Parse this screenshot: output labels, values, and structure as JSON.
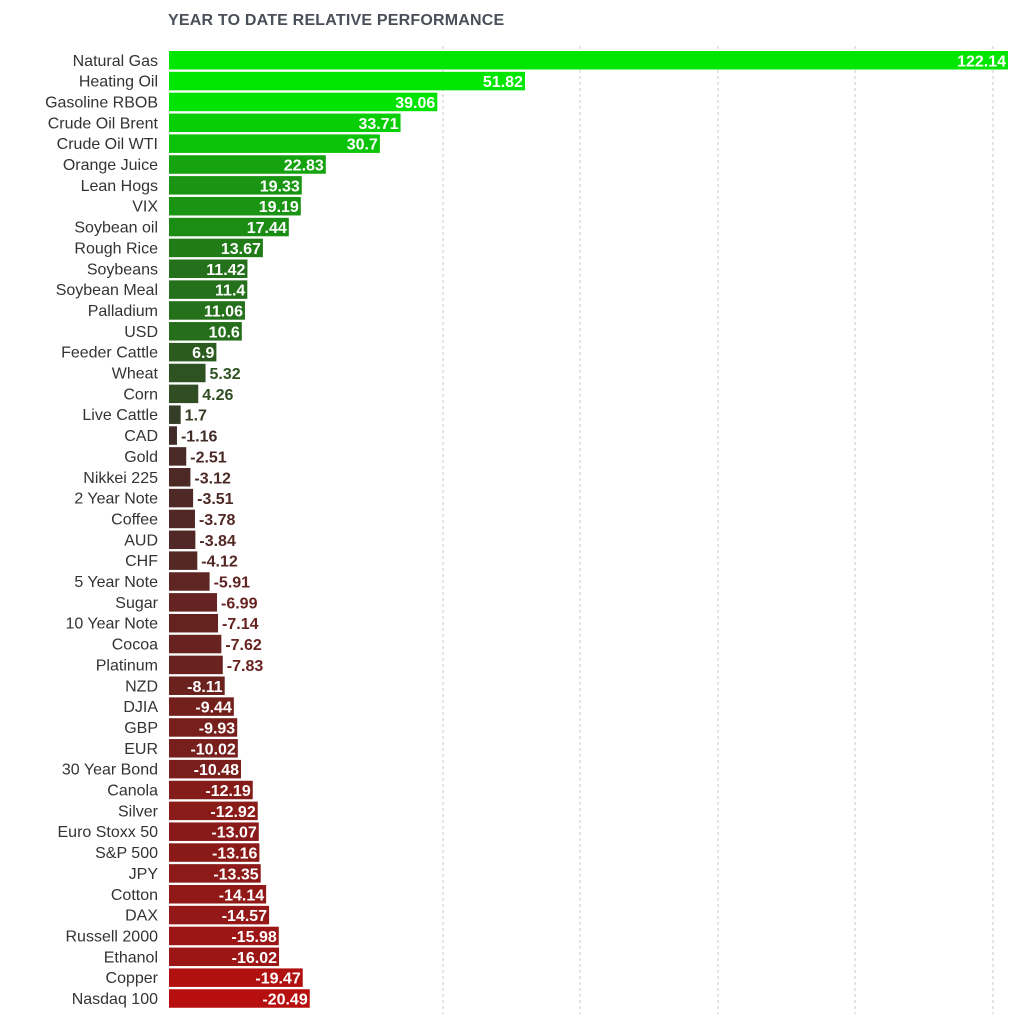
{
  "title": "YEAR TO DATE RELATIVE PERFORMANCE",
  "chart_data": {
    "type": "bar",
    "orientation": "horizontal",
    "title": "YEAR TO DATE RELATIVE PERFORMANCE",
    "xlabel": "",
    "ylabel": "",
    "grid": true,
    "categories": [
      "Natural Gas",
      "Heating Oil",
      "Gasoline RBOB",
      "Crude Oil Brent",
      "Crude Oil WTI",
      "Orange Juice",
      "Lean Hogs",
      "VIX",
      "Soybean oil",
      "Rough Rice",
      "Soybeans",
      "Soybean Meal",
      "Palladium",
      "USD",
      "Feeder Cattle",
      "Wheat",
      "Corn",
      "Live Cattle",
      "CAD",
      "Gold",
      "Nikkei 225",
      "2 Year Note",
      "Coffee",
      "AUD",
      "CHF",
      "5 Year Note",
      "Sugar",
      "10 Year Note",
      "Cocoa",
      "Platinum",
      "NZD",
      "DJIA",
      "GBP",
      "EUR",
      "30 Year Bond",
      "Canola",
      "Silver",
      "Euro Stoxx 50",
      "S&P 500",
      "JPY",
      "Cotton",
      "DAX",
      "Russell 2000",
      "Ethanol",
      "Copper",
      "Nasdaq 100"
    ],
    "values": [
      122.14,
      51.82,
      39.06,
      33.71,
      30.7,
      22.83,
      19.33,
      19.19,
      17.44,
      13.67,
      11.42,
      11.4,
      11.06,
      10.6,
      6.9,
      5.32,
      4.26,
      1.7,
      -1.16,
      -2.51,
      -3.12,
      -3.51,
      -3.78,
      -3.84,
      -4.12,
      -5.91,
      -6.99,
      -7.14,
      -7.62,
      -7.83,
      -8.11,
      -9.44,
      -9.93,
      -10.02,
      -10.48,
      -12.19,
      -12.92,
      -13.07,
      -13.16,
      -13.35,
      -14.14,
      -14.57,
      -15.98,
      -16.02,
      -19.47,
      -20.49
    ],
    "value_labels": [
      "122.14",
      "51.82",
      "39.06",
      "33.71",
      "30.7",
      "22.83",
      "19.33",
      "19.19",
      "17.44",
      "13.67",
      "11.42",
      "11.4",
      "11.06",
      "10.6",
      "6.9",
      "5.32",
      "4.26",
      "1.7",
      "-1.16",
      "-2.51",
      "-3.12",
      "-3.51",
      "-3.78",
      "-3.84",
      "-4.12",
      "-5.91",
      "-6.99",
      "-7.14",
      "-7.62",
      "-7.83",
      "-8.11",
      "-9.44",
      "-9.93",
      "-10.02",
      "-10.48",
      "-12.19",
      "-12.92",
      "-13.07",
      "-13.16",
      "-13.35",
      "-14.14",
      "-14.57",
      "-15.98",
      "-16.02",
      "-19.47",
      "-20.49"
    ],
    "colors": {
      "max_green": "#00e600",
      "near_zero": "#3a2e2a",
      "max_red": "#cc0a0a",
      "label_light": "#ffffff",
      "gridline": "#c8c8c8",
      "category_text": "#333333"
    }
  }
}
